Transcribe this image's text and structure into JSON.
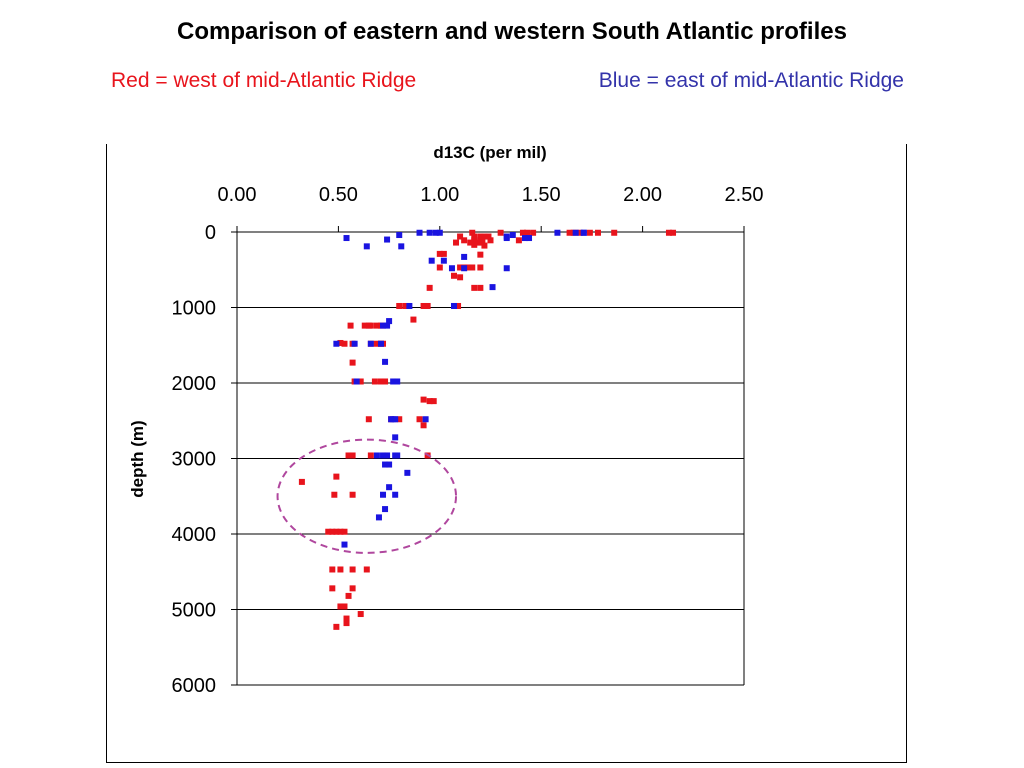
{
  "header": {
    "title": "Comparison of eastern and western South Atlantic profiles",
    "subtitle_west": "Red = west of mid-Atlantic Ridge",
    "subtitle_east": "Blue = east of mid-Atlantic Ridge"
  },
  "colors": {
    "west": "#e8141c",
    "east": "#1a14e0",
    "west_text": "#e8141c",
    "east_text": "#3333aa",
    "annotation": "#b0479e"
  },
  "chart_data": {
    "type": "scatter",
    "xlabel": "d13C (per mil)",
    "ylabel": "depth (m)",
    "xlim": [
      0,
      2.5
    ],
    "ylim": [
      6000,
      0
    ],
    "x_axis_position": "top",
    "x_ticks": [
      "0.00",
      "0.50",
      "1.00",
      "1.50",
      "2.00",
      "2.50"
    ],
    "y_ticks": [
      "0",
      "1000",
      "2000",
      "3000",
      "4000",
      "5000",
      "6000"
    ],
    "grid": "horizontal",
    "annotation": {
      "shape": "dashed-ellipse",
      "center": [
        0.64,
        3500
      ],
      "radius_x": 0.44,
      "radius_y": 750
    },
    "series": [
      {
        "name": "west of mid-Atlantic Ridge",
        "color": "#e8141c",
        "points": [
          [
            1.16,
            10
          ],
          [
            1.78,
            10
          ],
          [
            1.86,
            10
          ],
          [
            2.13,
            10
          ],
          [
            2.15,
            10
          ],
          [
            1.64,
            10
          ],
          [
            1.66,
            10
          ],
          [
            1.69,
            10
          ],
          [
            1.74,
            10
          ],
          [
            1.3,
            10
          ],
          [
            1.41,
            10
          ],
          [
            1.43,
            10
          ],
          [
            1.46,
            10
          ],
          [
            1.17,
            60
          ],
          [
            1.2,
            60
          ],
          [
            1.22,
            60
          ],
          [
            1.1,
            60
          ],
          [
            1.24,
            60
          ],
          [
            1.12,
            110
          ],
          [
            1.17,
            110
          ],
          [
            1.21,
            110
          ],
          [
            1.25,
            110
          ],
          [
            1.39,
            110
          ],
          [
            1.08,
            140
          ],
          [
            1.15,
            140
          ],
          [
            1.19,
            140
          ],
          [
            1.2,
            140
          ],
          [
            1.17,
            170
          ],
          [
            1.22,
            180
          ],
          [
            1.0,
            290
          ],
          [
            1.02,
            290
          ],
          [
            1.2,
            300
          ],
          [
            1.0,
            470
          ],
          [
            1.1,
            470
          ],
          [
            1.12,
            470
          ],
          [
            1.14,
            470
          ],
          [
            1.16,
            470
          ],
          [
            1.2,
            470
          ],
          [
            1.07,
            580
          ],
          [
            1.1,
            600
          ],
          [
            0.95,
            740
          ],
          [
            1.17,
            740
          ],
          [
            1.2,
            740
          ],
          [
            0.8,
            980
          ],
          [
            0.83,
            980
          ],
          [
            0.92,
            980
          ],
          [
            0.94,
            980
          ],
          [
            1.07,
            980
          ],
          [
            1.09,
            980
          ],
          [
            0.87,
            1160
          ],
          [
            0.56,
            1240
          ],
          [
            0.63,
            1240
          ],
          [
            0.65,
            1240
          ],
          [
            0.66,
            1240
          ],
          [
            0.69,
            1240
          ],
          [
            0.71,
            1240
          ],
          [
            0.51,
            1470
          ],
          [
            0.53,
            1480
          ],
          [
            0.57,
            1480
          ],
          [
            0.66,
            1480
          ],
          [
            0.69,
            1480
          ],
          [
            0.71,
            1480
          ],
          [
            0.72,
            1480
          ],
          [
            0.57,
            1730
          ],
          [
            0.58,
            1980
          ],
          [
            0.61,
            1980
          ],
          [
            0.68,
            1980
          ],
          [
            0.71,
            1980
          ],
          [
            0.73,
            1980
          ],
          [
            0.92,
            2220
          ],
          [
            0.95,
            2240
          ],
          [
            0.97,
            2240
          ],
          [
            0.65,
            2480
          ],
          [
            0.76,
            2480
          ],
          [
            0.8,
            2480
          ],
          [
            0.9,
            2480
          ],
          [
            0.92,
            2560
          ],
          [
            0.55,
            2960
          ],
          [
            0.57,
            2960
          ],
          [
            0.66,
            2960
          ],
          [
            0.73,
            2960
          ],
          [
            0.94,
            2960
          ],
          [
            0.49,
            3240
          ],
          [
            0.32,
            3310
          ],
          [
            0.48,
            3480
          ],
          [
            0.57,
            3480
          ],
          [
            0.45,
            3970
          ],
          [
            0.47,
            3970
          ],
          [
            0.49,
            3970
          ],
          [
            0.51,
            3970
          ],
          [
            0.53,
            3970
          ],
          [
            0.47,
            4470
          ],
          [
            0.51,
            4470
          ],
          [
            0.57,
            4470
          ],
          [
            0.64,
            4470
          ],
          [
            0.47,
            4720
          ],
          [
            0.57,
            4720
          ],
          [
            0.55,
            4820
          ],
          [
            0.51,
            4960
          ],
          [
            0.53,
            4960
          ],
          [
            0.61,
            5060
          ],
          [
            0.54,
            5120
          ],
          [
            0.54,
            5180
          ],
          [
            0.49,
            5230
          ]
        ]
      },
      {
        "name": "east of mid-Atlantic Ridge",
        "color": "#1a14e0",
        "points": [
          [
            0.9,
            10
          ],
          [
            0.95,
            10
          ],
          [
            0.98,
            10
          ],
          [
            1.0,
            10
          ],
          [
            1.58,
            10
          ],
          [
            1.67,
            10
          ],
          [
            1.71,
            10
          ],
          [
            1.71,
            10
          ],
          [
            0.8,
            40
          ],
          [
            1.36,
            40
          ],
          [
            1.33,
            60
          ],
          [
            1.33,
            80
          ],
          [
            1.42,
            80
          ],
          [
            1.44,
            80
          ],
          [
            0.54,
            80
          ],
          [
            0.74,
            100
          ],
          [
            0.64,
            190
          ],
          [
            0.81,
            190
          ],
          [
            1.12,
            330
          ],
          [
            0.96,
            380
          ],
          [
            1.02,
            380
          ],
          [
            1.12,
            480
          ],
          [
            1.33,
            480
          ],
          [
            1.06,
            480
          ],
          [
            1.26,
            730
          ],
          [
            0.85,
            980
          ],
          [
            1.07,
            980
          ],
          [
            0.75,
            1180
          ],
          [
            0.49,
            1480
          ],
          [
            0.58,
            1480
          ],
          [
            0.66,
            1480
          ],
          [
            0.71,
            1480
          ],
          [
            0.72,
            1240
          ],
          [
            0.74,
            1240
          ],
          [
            0.73,
            1720
          ],
          [
            0.59,
            1980
          ],
          [
            0.77,
            1980
          ],
          [
            0.79,
            1980
          ],
          [
            0.76,
            2480
          ],
          [
            0.77,
            2480
          ],
          [
            0.78,
            2480
          ],
          [
            0.93,
            2480
          ],
          [
            0.78,
            2720
          ],
          [
            0.69,
            2960
          ],
          [
            0.72,
            2960
          ],
          [
            0.74,
            2960
          ],
          [
            0.78,
            2960
          ],
          [
            0.79,
            2960
          ],
          [
            0.73,
            3080
          ],
          [
            0.75,
            3080
          ],
          [
            0.84,
            3190
          ],
          [
            0.75,
            3380
          ],
          [
            0.72,
            3480
          ],
          [
            0.78,
            3480
          ],
          [
            0.73,
            3670
          ],
          [
            0.7,
            3780
          ],
          [
            0.53,
            4140
          ]
        ]
      }
    ]
  }
}
